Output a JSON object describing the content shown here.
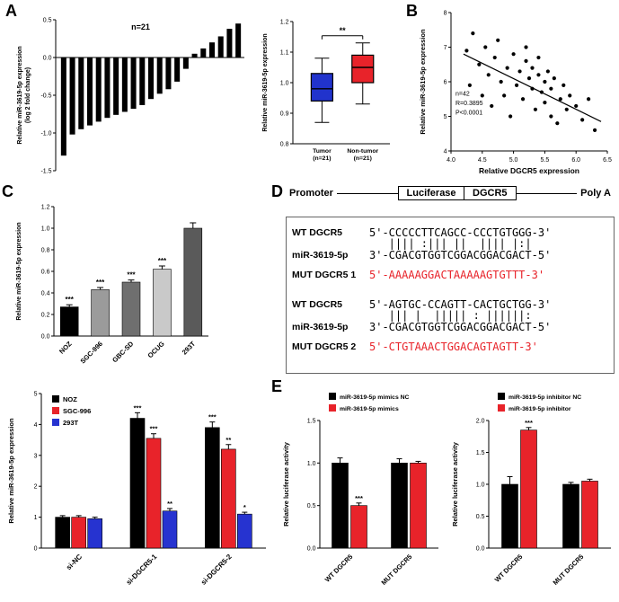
{
  "panels": {
    "a": "A",
    "b": "B",
    "c": "C",
    "d": "D",
    "e": "E"
  },
  "colors": {
    "black": "#000000",
    "red": "#e8232a",
    "blue": "#2633d0"
  },
  "panel_d": {
    "construct": {
      "promoter": "Promoter",
      "luciferase": "Luciferase",
      "dgcr5": "DGCR5",
      "polya": "Poly A"
    },
    "alignments": [
      {
        "wt_label": "WT DGCR5",
        "wt_seq": "5'-CCCCCTTCAGCC-CCCTGTGGG-3'",
        "pairs": "   |||| :||| ||  |||| |:|",
        "mir_label": "miR-3619-5p",
        "mir_seq": "3'-CGACGTGGTCGGACGGACGACT-5'",
        "mut_label": "MUT DGCR5 1",
        "mut_seq": "5'-AAAAAGGACTAAAAAGTGTTT-3'"
      },
      {
        "wt_label": "WT DGCR5",
        "wt_seq": "5'-AGTGC-CCAGTT-CACTGCTGG-3'",
        "pairs": "   ||| |  ||||| : ||||||:",
        "mir_label": "miR-3619-5p",
        "mir_seq": "3'-CGACGTGGTCGGACGGACGACT-5'",
        "mut_label": "MUT DGCR5 2",
        "mut_seq": "5'-CTGTAAACTGGACAGTAGTT-3'"
      }
    ]
  },
  "chart_data": [
    {
      "id": "A_waterfall",
      "type": "bar",
      "subtype": "waterfall",
      "annotation": "n=21",
      "ylabel": "Relative miR-3619-5p expression",
      "ylabel2": "(log 2 fold change)",
      "ylim": [
        -1.5,
        0.5
      ],
      "ytick_step": 0.5,
      "values": [
        -1.3,
        -1.02,
        -0.95,
        -0.9,
        -0.85,
        -0.8,
        -0.76,
        -0.72,
        -0.68,
        -0.63,
        -0.55,
        -0.48,
        -0.42,
        -0.32,
        -0.15,
        0.05,
        0.12,
        0.2,
        0.28,
        0.38,
        0.45
      ],
      "bar_color": "#000000"
    },
    {
      "id": "A_box",
      "type": "box",
      "ylabel": "Relative miR-3619-5p expression",
      "ylim": [
        0.8,
        1.2
      ],
      "ytick_step": 0.1,
      "significance": "**",
      "groups": [
        {
          "label": "Tumor",
          "sublabel": "(n=21)",
          "color": "#2133cc",
          "whisker_low": 0.87,
          "q1": 0.94,
          "median": 0.98,
          "q3": 1.03,
          "whisker_high": 1.08
        },
        {
          "label": "Non-tumor",
          "sublabel": "(n=21)",
          "color": "#e8232a",
          "whisker_low": 0.93,
          "q1": 1.0,
          "median": 1.05,
          "q3": 1.09,
          "whisker_high": 1.13
        }
      ]
    },
    {
      "id": "B_scatter",
      "type": "scatter",
      "xlabel": "Relative DGCR5 expression",
      "ylabel": "Relative miR-3619-5p expression",
      "xlim": [
        4.0,
        6.5
      ],
      "xtick_step": 0.5,
      "ylim": [
        4,
        8
      ],
      "ytick_step": 1,
      "stats": [
        "n=42",
        "R=0.3895",
        "P<0.0001"
      ],
      "fit_line": [
        4.2,
        6.8,
        6.4,
        4.85
      ],
      "points": [
        [
          4.25,
          6.9
        ],
        [
          4.3,
          5.9
        ],
        [
          4.35,
          7.4
        ],
        [
          4.45,
          6.5
        ],
        [
          4.5,
          5.6
        ],
        [
          4.55,
          7.0
        ],
        [
          4.6,
          6.2
        ],
        [
          4.65,
          5.3
        ],
        [
          4.7,
          6.7
        ],
        [
          4.75,
          7.2
        ],
        [
          4.8,
          6.0
        ],
        [
          4.85,
          5.6
        ],
        [
          4.9,
          6.4
        ],
        [
          4.95,
          5.0
        ],
        [
          5.0,
          6.8
        ],
        [
          5.05,
          5.9
        ],
        [
          5.1,
          6.3
        ],
        [
          5.15,
          5.5
        ],
        [
          5.2,
          6.6
        ],
        [
          5.2,
          7.0
        ],
        [
          5.25,
          6.1
        ],
        [
          5.3,
          5.8
        ],
        [
          5.3,
          6.4
        ],
        [
          5.35,
          5.2
        ],
        [
          5.4,
          6.2
        ],
        [
          5.4,
          6.7
        ],
        [
          5.45,
          5.7
        ],
        [
          5.5,
          6.0
        ],
        [
          5.5,
          5.4
        ],
        [
          5.55,
          6.3
        ],
        [
          5.6,
          5.0
        ],
        [
          5.6,
          5.8
        ],
        [
          5.65,
          6.1
        ],
        [
          5.7,
          4.8
        ],
        [
          5.75,
          5.5
        ],
        [
          5.8,
          5.9
        ],
        [
          5.85,
          5.2
        ],
        [
          5.9,
          5.6
        ],
        [
          6.0,
          5.3
        ],
        [
          6.1,
          4.9
        ],
        [
          6.2,
          5.5
        ],
        [
          6.3,
          4.6
        ]
      ]
    },
    {
      "id": "C_cells",
      "type": "bar",
      "ylabel": "Relative miR-3619-5p expression",
      "ylim": [
        0,
        1.2
      ],
      "ytick_step": 0.2,
      "ytick_decimals": 1,
      "categories": [
        "NOZ",
        "SGC-996",
        "GBC-SD",
        "OCUG",
        "293T"
      ],
      "values": [
        0.27,
        0.43,
        0.5,
        0.62,
        1.0
      ],
      "errors": [
        0.02,
        0.02,
        0.02,
        0.03,
        0.05
      ],
      "sig": [
        "***",
        "***",
        "***",
        "***",
        ""
      ],
      "colors": [
        "#000000",
        "#9b9b9b",
        "#6f6f6f",
        "#c9c9c9",
        "#5a5a5a"
      ]
    },
    {
      "id": "C_knockdown",
      "type": "grouped_bar",
      "ylabel": "Relative miR-3619-5p expression",
      "ylim": [
        0,
        5
      ],
      "ytick_step": 1,
      "ytick_decimals": 0,
      "categories": [
        "si-NC",
        "si-DGCR5-1",
        "si-DGCR5-2"
      ],
      "legend_position": "top-left",
      "series": [
        {
          "name": "NOZ",
          "color": "#000000",
          "values": [
            1.0,
            4.2,
            3.9
          ],
          "errors": [
            0.05,
            0.18,
            0.18
          ],
          "sig": [
            "",
            "***",
            "***"
          ]
        },
        {
          "name": "SGC-996",
          "color": "#e8232a",
          "values": [
            1.0,
            3.55,
            3.2
          ],
          "errors": [
            0.05,
            0.15,
            0.15
          ],
          "sig": [
            "",
            "***",
            "**"
          ]
        },
        {
          "name": "293T",
          "color": "#2633d0",
          "values": [
            0.95,
            1.2,
            1.1
          ],
          "errors": [
            0.05,
            0.08,
            0.06
          ],
          "sig": [
            "",
            "**",
            "*"
          ]
        }
      ]
    },
    {
      "id": "E_mimics",
      "type": "grouped_bar",
      "ylabel": "Relative luciferase activity",
      "ylim": [
        0,
        1.5
      ],
      "ytick_step": 0.5,
      "ytick_decimals": 1,
      "categories": [
        "WT DGCR5",
        "MUT DGCR5"
      ],
      "legend_position": "top",
      "series": [
        {
          "name": "miR-3619-5p mimics NC",
          "color": "#000000",
          "values": [
            1.0,
            1.0
          ],
          "errors": [
            0.06,
            0.05
          ],
          "sig": [
            "",
            ""
          ]
        },
        {
          "name": "miR-3619-5p mimics",
          "color": "#e8232a",
          "values": [
            0.5,
            1.0
          ],
          "errors": [
            0.03,
            0.02
          ],
          "sig": [
            "***",
            ""
          ]
        }
      ]
    },
    {
      "id": "E_inhibitor",
      "type": "grouped_bar",
      "ylabel": "Relative luciferase activity",
      "ylim": [
        0,
        2
      ],
      "ytick_step": 0.5,
      "ytick_decimals": 1,
      "categories": [
        "WT DGCR5",
        "MUT DGCR5"
      ],
      "legend_position": "top",
      "series": [
        {
          "name": "miR-3619-5p inhibitor NC",
          "color": "#000000",
          "values": [
            1.0,
            1.0
          ],
          "errors": [
            0.12,
            0.03
          ],
          "sig": [
            "",
            ""
          ]
        },
        {
          "name": "miR-3619-5p inhibitor",
          "color": "#e8232a",
          "values": [
            1.85,
            1.05
          ],
          "errors": [
            0.04,
            0.03
          ],
          "sig": [
            "***",
            ""
          ]
        }
      ]
    }
  ]
}
